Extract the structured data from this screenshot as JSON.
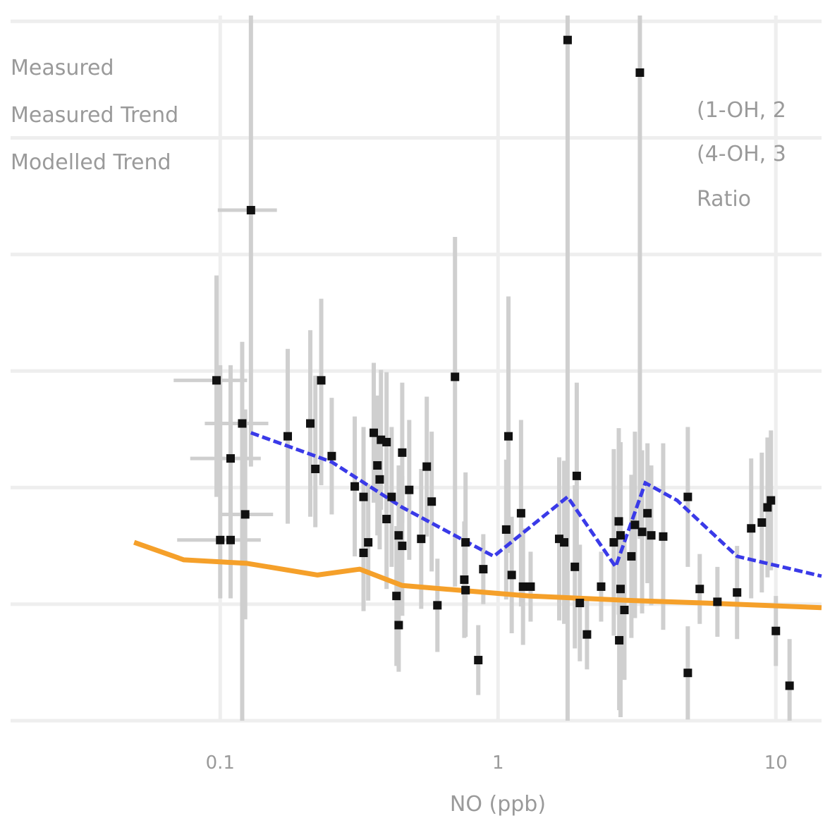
{
  "chart_data": {
    "type": "scatter",
    "title": "",
    "xlabel": "NO (ppb)",
    "ylabel": "(1-OH, 2 / (4-OH, 3 Ratio",
    "xscale": "log",
    "xlim": [
      0.0176,
      14.6
    ],
    "ylim": [
      0,
      6.05
    ],
    "xticks": [
      0.1,
      1,
      10
    ],
    "xtick_labels": [
      "0.1",
      "1",
      "10"
    ],
    "y_gridlines": [
      0,
      1,
      2,
      3,
      4,
      5,
      6
    ],
    "grid": true,
    "legend": {
      "placement": "top-left",
      "entries": [
        "Measured",
        "Measured Trend",
        "Modelled Trend"
      ]
    },
    "annotation_lines": [
      "(1-OH, 2",
      "(4-OH, 3",
      "Ratio"
    ],
    "colors": {
      "measured": "#111111",
      "errorbar": "#cfcfcf",
      "measured_trend": "#3a3ae8",
      "modelled_trend": "#f5a02a",
      "grid": "#eeeeee",
      "text": "#9a9a9a"
    },
    "series": [
      {
        "name": "Measured",
        "kind": "points",
        "points": [
          {
            "x": 0.129,
            "y": 4.38,
            "yerr": [
              2.2,
              1.7
            ],
            "xerr": [
              0.098,
              0.16
            ]
          },
          {
            "x": 0.097,
            "y": 2.92,
            "yerr": [
              1.0,
              0.9
            ],
            "xerr": [
              0.068,
              0.125
            ]
          },
          {
            "x": 0.12,
            "y": 2.55,
            "yerr": [
              2.6,
              0.7
            ],
            "xerr": [
              0.088,
              0.149
            ]
          },
          {
            "x": 0.109,
            "y": 2.25,
            "yerr": [
              0.8,
              0.8
            ],
            "xerr": [
              0.078,
              0.14
            ]
          },
          {
            "x": 0.123,
            "y": 1.77,
            "yerr": [
              0.9,
              0.9
            ],
            "xerr": [
              0.1,
              0.155
            ]
          },
          {
            "x": 0.1,
            "y": 1.55,
            "yerr": [
              0.5,
              1.5
            ],
            "xerr": [
              0.07,
              0.14
            ]
          },
          {
            "x": 0.109,
            "y": 1.55,
            "yerr": [
              0.5,
              0.7
            ]
          },
          {
            "x": 0.175,
            "y": 2.44,
            "yerr": [
              0.75,
              0.75
            ]
          },
          {
            "x": 0.211,
            "y": 2.55,
            "yerr": [
              0.8,
              0.8
            ]
          },
          {
            "x": 0.231,
            "y": 2.92,
            "yerr": [
              0.9,
              0.7
            ]
          },
          {
            "x": 0.22,
            "y": 2.16,
            "yerr": [
              0.5,
              0.8
            ]
          },
          {
            "x": 0.252,
            "y": 2.27,
            "yerr": [
              0.5,
              0.5
            ]
          },
          {
            "x": 0.305,
            "y": 2.01,
            "yerr": [
              0.6,
              0.6
            ]
          },
          {
            "x": 0.328,
            "y": 1.92,
            "yerr": [
              0.6,
              0.6
            ]
          },
          {
            "x": 0.357,
            "y": 2.47,
            "yerr": [
              0.6,
              0.6
            ]
          },
          {
            "x": 0.379,
            "y": 2.41,
            "yerr": [
              0.6,
              0.6
            ]
          },
          {
            "x": 0.397,
            "y": 2.39,
            "yerr": [
              0.6,
              0.6
            ]
          },
          {
            "x": 0.368,
            "y": 2.19,
            "yerr": [
              0.6,
              0.6
            ]
          },
          {
            "x": 0.375,
            "y": 2.07,
            "yerr": [
              0.6,
              0.6
            ]
          },
          {
            "x": 0.452,
            "y": 2.3,
            "yerr": [
              0.6,
              0.6
            ]
          },
          {
            "x": 0.414,
            "y": 1.92,
            "yerr": [
              0.6,
              0.6
            ]
          },
          {
            "x": 0.397,
            "y": 1.73,
            "yerr": [
              0.6,
              0.6
            ]
          },
          {
            "x": 0.479,
            "y": 1.98,
            "yerr": [
              0.6,
              0.6
            ]
          },
          {
            "x": 0.439,
            "y": 1.59,
            "yerr": [
              0.6,
              0.6
            ]
          },
          {
            "x": 0.452,
            "y": 1.5,
            "yerr": [
              0.6,
              0.6
            ]
          },
          {
            "x": 0.529,
            "y": 1.56,
            "yerr": [
              0.6,
              0.6
            ]
          },
          {
            "x": 0.328,
            "y": 1.44,
            "yerr": [
              0.5,
              0.5
            ]
          },
          {
            "x": 0.341,
            "y": 1.53,
            "yerr": [
              0.5,
              0.5
            ]
          },
          {
            "x": 0.554,
            "y": 2.18,
            "yerr": [
              0.6,
              0.6
            ]
          },
          {
            "x": 0.577,
            "y": 1.88,
            "yerr": [
              0.6,
              0.6
            ]
          },
          {
            "x": 0.431,
            "y": 1.07,
            "yerr": [
              0.6,
              0.6
            ]
          },
          {
            "x": 0.439,
            "y": 0.82,
            "yerr": [
              0.4,
              0.4
            ]
          },
          {
            "x": 0.605,
            "y": 0.99,
            "yerr": [
              0.4,
              0.4
            ]
          },
          {
            "x": 0.7,
            "y": 2.95,
            "yerr": [
              1.8,
              1.2
            ]
          },
          {
            "x": 0.764,
            "y": 1.53,
            "yerr": [
              0.6,
              0.6
            ]
          },
          {
            "x": 0.756,
            "y": 1.21,
            "yerr": [
              0.5,
              0.5
            ]
          },
          {
            "x": 0.764,
            "y": 1.12,
            "yerr": [
              0.4,
              0.4
            ]
          },
          {
            "x": 0.849,
            "y": 0.52,
            "yerr": [
              0.3,
              0.3
            ]
          },
          {
            "x": 0.885,
            "y": 1.3,
            "yerr": [
              0.3,
              0.3
            ]
          },
          {
            "x": 1.09,
            "y": 2.44,
            "yerr": [
              1.0,
              1.2
            ]
          },
          {
            "x": 1.07,
            "y": 1.64,
            "yerr": [
              0.6,
              0.6
            ]
          },
          {
            "x": 1.12,
            "y": 1.25,
            "yerr": [
              0.5,
              0.5
            ]
          },
          {
            "x": 1.21,
            "y": 1.78,
            "yerr": [
              0.8,
              0.8
            ]
          },
          {
            "x": 1.23,
            "y": 1.15,
            "yerr": [
              0.5,
              0.5
            ]
          },
          {
            "x": 1.31,
            "y": 1.15,
            "yerr": [
              0.3,
              0.3
            ]
          },
          {
            "x": 1.78,
            "y": 5.84,
            "yerr": [
              5.84,
              0.3
            ]
          },
          {
            "x": 1.66,
            "y": 1.56,
            "yerr": [
              0.7,
              0.7
            ]
          },
          {
            "x": 1.73,
            "y": 1.53,
            "yerr": [
              0.7,
              0.7
            ]
          },
          {
            "x": 1.92,
            "y": 2.1,
            "yerr": [
              0.8,
              0.8
            ]
          },
          {
            "x": 1.89,
            "y": 1.32,
            "yerr": [
              0.7,
              0.7
            ]
          },
          {
            "x": 1.97,
            "y": 1.01,
            "yerr": [
              0.5,
              0.5
            ]
          },
          {
            "x": 2.09,
            "y": 0.74,
            "yerr": [
              0.3,
              0.3
            ]
          },
          {
            "x": 2.35,
            "y": 1.15,
            "yerr": [
              0.3,
              0.3
            ]
          },
          {
            "x": 2.72,
            "y": 1.71,
            "yerr": [
              0.8,
              0.8
            ]
          },
          {
            "x": 2.76,
            "y": 1.59,
            "yerr": [
              0.8,
              0.8
            ]
          },
          {
            "x": 2.61,
            "y": 1.53,
            "yerr": [
              0.8,
              0.8
            ]
          },
          {
            "x": 2.76,
            "y": 1.13,
            "yerr": [
              1.1,
              0.6
            ]
          },
          {
            "x": 2.85,
            "y": 0.95,
            "yerr": [
              0.6,
              0.6
            ]
          },
          {
            "x": 2.73,
            "y": 0.69,
            "yerr": [
              0.6,
              0.6
            ]
          },
          {
            "x": 3.11,
            "y": 1.68,
            "yerr": [
              0.8,
              0.8
            ]
          },
          {
            "x": 3.02,
            "y": 1.41,
            "yerr": [
              0.7,
              0.7
            ]
          },
          {
            "x": 3.3,
            "y": 1.62,
            "yerr": [
              0.7,
              0.7
            ]
          },
          {
            "x": 3.24,
            "y": 5.56,
            "yerr": [
              4.0,
              0.5
            ]
          },
          {
            "x": 3.45,
            "y": 1.78,
            "yerr": [
              0.6,
              0.6
            ]
          },
          {
            "x": 3.56,
            "y": 1.59,
            "yerr": [
              0.6,
              0.6
            ]
          },
          {
            "x": 3.93,
            "y": 1.58,
            "yerr": [
              0.8,
              0.8
            ]
          },
          {
            "x": 4.82,
            "y": 1.92,
            "yerr": [
              0.6,
              0.6
            ]
          },
          {
            "x": 5.32,
            "y": 1.13,
            "yerr": [
              0.3,
              0.3
            ]
          },
          {
            "x": 4.82,
            "y": 0.41,
            "yerr": [
              0.4,
              0.4
            ]
          },
          {
            "x": 6.16,
            "y": 1.02,
            "yerr": [
              0.3,
              0.3
            ]
          },
          {
            "x": 7.25,
            "y": 1.1,
            "yerr": [
              0.4,
              0.4
            ]
          },
          {
            "x": 8.15,
            "y": 1.65,
            "yerr": [
              0.6,
              0.6
            ]
          },
          {
            "x": 8.9,
            "y": 1.7,
            "yerr": [
              0.6,
              0.6
            ]
          },
          {
            "x": 9.33,
            "y": 1.83,
            "yerr": [
              0.6,
              0.6
            ]
          },
          {
            "x": 9.6,
            "y": 1.89,
            "yerr": [
              0.6,
              0.6
            ]
          },
          {
            "x": 10.0,
            "y": 0.77,
            "yerr": [
              0.3,
              0.3
            ]
          },
          {
            "x": 11.2,
            "y": 0.3,
            "yerr": [
              0.3,
              0.4
            ]
          }
        ]
      },
      {
        "name": "Measured Trend",
        "kind": "dashed-line",
        "x": [
          0.129,
          0.252,
          0.452,
          0.965,
          1.78,
          2.65,
          3.39,
          4.41,
          7.25,
          14.6
        ],
        "y": [
          2.47,
          2.22,
          1.83,
          1.41,
          1.92,
          1.32,
          2.04,
          1.89,
          1.41,
          1.24
        ]
      },
      {
        "name": "Modelled Trend",
        "kind": "line",
        "x": [
          0.049,
          0.074,
          0.125,
          0.224,
          0.318,
          0.452,
          0.721,
          1.29,
          3.11,
          5.57,
          14.6
        ],
        "y": [
          1.53,
          1.38,
          1.35,
          1.25,
          1.3,
          1.16,
          1.12,
          1.07,
          1.03,
          1.01,
          0.97
        ]
      }
    ]
  }
}
